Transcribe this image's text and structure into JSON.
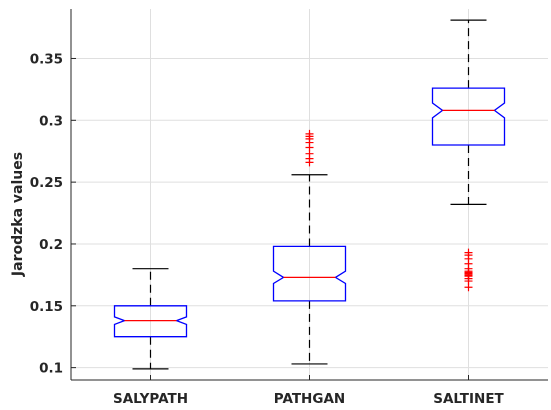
{
  "chart_data": {
    "type": "box",
    "title": "",
    "xlabel": "",
    "ylabel": "Jarodzka values",
    "ylim": [
      0.09,
      0.39
    ],
    "yticks": [
      0.1,
      0.15,
      0.2,
      0.25,
      0.3,
      0.35
    ],
    "ytick_labels": [
      "0.1",
      "0.15",
      "0.2",
      "0.25",
      "0.3",
      "0.35"
    ],
    "grid": true,
    "categories": [
      "SALYPATH",
      "PATHGAN",
      "SALTINET"
    ],
    "boxes": [
      {
        "name": "SALYPATH",
        "whisker_low": 0.099,
        "q1": 0.125,
        "median": 0.138,
        "q3": 0.15,
        "whisker_high": 0.18,
        "notch_low": 0.135,
        "notch_high": 0.141,
        "outliers": []
      },
      {
        "name": "PATHGAN",
        "whisker_low": 0.103,
        "q1": 0.154,
        "median": 0.173,
        "q3": 0.198,
        "whisker_high": 0.256,
        "notch_low": 0.168,
        "notch_high": 0.178,
        "outliers": [
          0.266,
          0.269,
          0.273,
          0.278,
          0.282,
          0.285,
          0.287,
          0.289
        ]
      },
      {
        "name": "SALTINET",
        "whisker_low": 0.232,
        "q1": 0.28,
        "median": 0.308,
        "q3": 0.326,
        "whisker_high": 0.381,
        "notch_low": 0.302,
        "notch_high": 0.314,
        "outliers": [
          0.165,
          0.17,
          0.172,
          0.174,
          0.175,
          0.176,
          0.177,
          0.178,
          0.18,
          0.184,
          0.188,
          0.191,
          0.193
        ]
      }
    ],
    "colors": {
      "box": "#0000ff",
      "median": "#ff0000",
      "outlier": "#ff0000",
      "whisker": "#000000",
      "grid": "#dfdfdf",
      "axis": "#262626"
    }
  }
}
